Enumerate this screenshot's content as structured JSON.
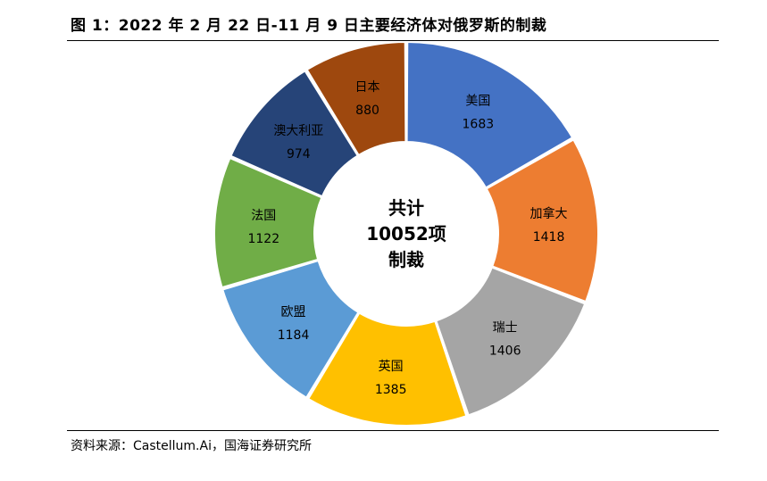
{
  "title": "图 1：2022 年 2 月 22 日-11 月 9 日主要经济体对俄罗斯的制裁",
  "source": "资料来源：Castellum.Ai，国海证券研究所",
  "chart_data": {
    "type": "pie",
    "donut": true,
    "center_text": [
      "共计",
      "10052项",
      "制裁"
    ],
    "categories": [
      "美国",
      "加拿大",
      "瑞士",
      "英国",
      "欧盟",
      "法国",
      "澳大利亚",
      "日本"
    ],
    "values": [
      1683,
      1418,
      1406,
      1385,
      1184,
      1122,
      974,
      880
    ],
    "colors": [
      "#4472C4",
      "#ED7D31",
      "#A5A5A5",
      "#FFC000",
      "#5B9BD5",
      "#70AD47",
      "#264478",
      "#9E480E"
    ]
  }
}
